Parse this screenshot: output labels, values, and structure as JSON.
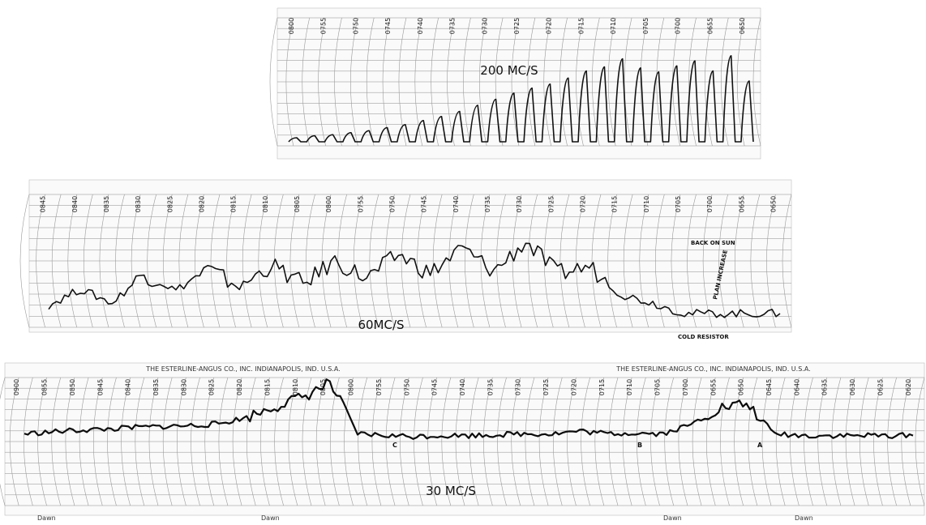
{
  "chart_data": [
    {
      "type": "line",
      "title": "200 MC/S",
      "x_ticks": [
        "0800",
        "0755",
        "0750",
        "0745",
        "0740",
        "0735",
        "0730",
        "0725",
        "0720",
        "0715",
        "0710",
        "0705",
        "0700",
        "0655",
        "0650"
      ],
      "series": [
        {
          "values": [
            0.04,
            0.06,
            0.07,
            0.09,
            0.11,
            0.14,
            0.17,
            0.21,
            0.25,
            0.3,
            0.36,
            0.42,
            0.48,
            0.53,
            0.57,
            0.63,
            0.7,
            0.74,
            0.82,
            0.73,
            0.69,
            0.75,
            0.8,
            0.7,
            0.85,
            0.6
          ]
        }
      ]
    },
    {
      "type": "line",
      "title": "60MC/S",
      "x_ticks": [
        "0845",
        "0840",
        "0835",
        "0830",
        "0825",
        "0820",
        "0815",
        "0810",
        "0805",
        "0800",
        "0755",
        "0750",
        "0745",
        "0740",
        "0735",
        "0730",
        "0725",
        "0720",
        "0715",
        "0710",
        "0705",
        "0700",
        "0655",
        "0650"
      ],
      "annotations": [
        "BACK ON SUN",
        "PLAN INCREASE",
        "COLD RESISTOR"
      ],
      "series": [
        {
          "values": [
            0.18,
            0.33,
            0.2,
            0.48,
            0.32,
            0.52,
            0.35,
            0.56,
            0.38,
            0.6,
            0.43,
            0.66,
            0.48,
            0.72,
            0.5,
            0.78,
            0.48,
            0.55,
            0.28,
            0.2,
            0.1,
            0.1,
            0.1,
            0.1
          ]
        }
      ]
    },
    {
      "type": "line",
      "title": "30 MC/S",
      "header_text": [
        "THE ESTERLINE-ANGUS CO., INC. INDIANAPOLIS, IND. U.S.A.",
        "THE ESTERLINE-ANGUS CO., INC. INDIANAPOLIS, IND. U.S.A."
      ],
      "x_ticks": [
        "0900",
        "0855",
        "0850",
        "0845",
        "0840",
        "0835",
        "0830",
        "0825",
        "0820",
        "0815",
        "0810",
        "0805",
        "0800",
        "0755",
        "0750",
        "0745",
        "0740",
        "0735",
        "0730",
        "0725",
        "0720",
        "0715",
        "0710",
        "0705",
        "0700",
        "0655",
        "0650",
        "0645",
        "0640",
        "0635",
        "0630",
        "0625",
        "0620"
      ],
      "markers": [
        "C",
        "B",
        "A"
      ],
      "footer": [
        "Dawn",
        "Dawn",
        "Dawn",
        "Dawn"
      ],
      "series": [
        {
          "values": [
            0.22,
            0.24,
            0.26,
            0.27,
            0.29,
            0.3,
            0.31,
            0.33,
            0.4,
            0.52,
            0.62,
            0.78,
            0.22,
            0.2,
            0.19,
            0.2,
            0.2,
            0.21,
            0.22,
            0.22,
            0.25,
            0.22,
            0.23,
            0.22,
            0.32,
            0.5,
            0.55,
            0.22,
            0.2,
            0.2,
            0.2,
            0.2,
            0.2
          ]
        }
      ]
    }
  ]
}
